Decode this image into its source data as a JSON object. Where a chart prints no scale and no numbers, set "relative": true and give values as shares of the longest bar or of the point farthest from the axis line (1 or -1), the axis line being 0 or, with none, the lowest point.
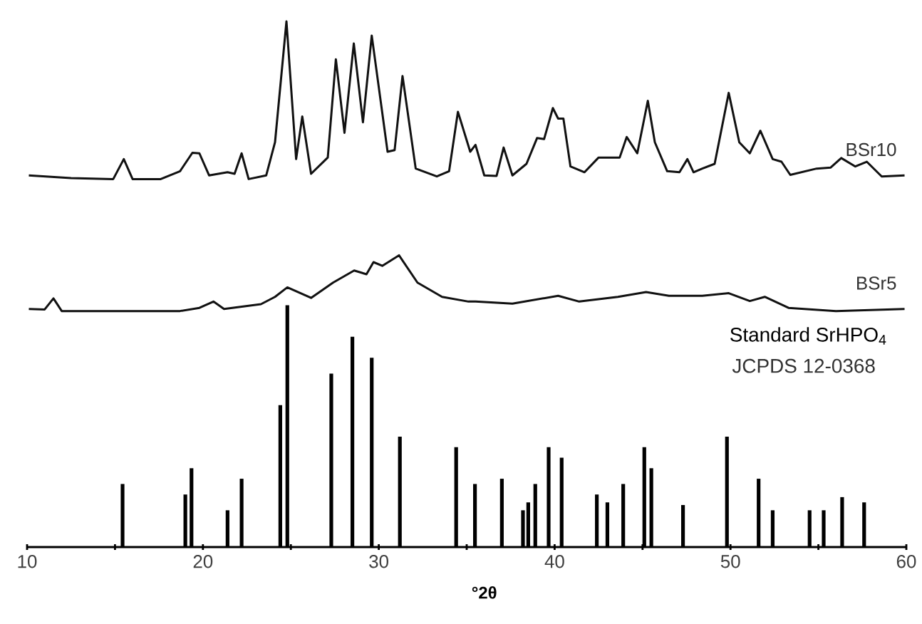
{
  "chart_data": {
    "type": "line",
    "relative": true,
    "xlabel": "°2θ",
    "xlim": [
      10,
      60
    ],
    "xticks": [
      10,
      {
        "value": 15,
        "label": null
      },
      20,
      {
        "value": 25,
        "label": null
      },
      30,
      {
        "value": 35,
        "label": null
      },
      40,
      {
        "value": 45,
        "label": null
      },
      50,
      {
        "value": 55,
        "label": null
      },
      60
    ],
    "annotations": [
      "JCPDS 12-0368"
    ],
    "series": [
      {
        "name": "BSr10",
        "color": "#111111",
        "x": [
          10.1,
          12.5,
          14.9,
          15.5,
          16.0,
          17.6,
          18.7,
          19.4,
          19.8,
          20.35,
          21.4,
          21.8,
          22.2,
          22.6,
          23.6,
          24.1,
          24.75,
          25.3,
          25.65,
          26.15,
          27.1,
          27.56,
          28.05,
          28.58,
          29.1,
          29.6,
          30.5,
          30.9,
          31.35,
          32.1,
          33.3,
          34.0,
          34.5,
          35.2,
          35.5,
          36.0,
          36.7,
          37.1,
          37.6,
          38.4,
          39.0,
          39.4,
          39.9,
          40.2,
          40.5,
          40.9,
          41.7,
          42.5,
          43.3,
          43.7,
          44.1,
          44.7,
          45.3,
          45.7,
          46.4,
          47.1,
          47.55,
          47.9,
          48.4,
          49.1,
          49.9,
          50.5,
          51.1,
          51.7,
          52.4,
          52.9,
          53.4,
          54.9,
          55.7,
          56.3,
          57.1,
          57.75,
          58.6,
          59.9
        ],
        "values": [
          0.707,
          0.702,
          0.7,
          0.738,
          0.7,
          0.7,
          0.715,
          0.75,
          0.749,
          0.707,
          0.713,
          0.71,
          0.749,
          0.7,
          0.707,
          0.77,
          1.0,
          0.738,
          0.819,
          0.71,
          0.741,
          0.928,
          0.788,
          0.958,
          0.808,
          0.973,
          0.752,
          0.755,
          0.896,
          0.72,
          0.705,
          0.715,
          0.828,
          0.752,
          0.765,
          0.707,
          0.706,
          0.76,
          0.707,
          0.729,
          0.778,
          0.776,
          0.835,
          0.815,
          0.815,
          0.724,
          0.713,
          0.741,
          0.741,
          0.741,
          0.78,
          0.749,
          0.849,
          0.77,
          0.715,
          0.713,
          0.738,
          0.713,
          0.72,
          0.729,
          0.864,
          0.77,
          0.749,
          0.792,
          0.738,
          0.733,
          0.708,
          0.72,
          0.722,
          0.74,
          0.724,
          0.733,
          0.705,
          0.707
        ]
      },
      {
        "name": "BSr5",
        "color": "#111111",
        "x": [
          10.1,
          11.0,
          11.5,
          11.97,
          15.2,
          18.7,
          19.8,
          20.6,
          21.2,
          23.3,
          24.1,
          24.8,
          26.15,
          27.4,
          28.6,
          29.3,
          29.7,
          30.2,
          31.15,
          32.2,
          33.6,
          35.1,
          35.5,
          37.6,
          40.2,
          41.4,
          43.6,
          45.2,
          46.5,
          48.4,
          49.9,
          51.1,
          51.95,
          53.3,
          56.0,
          59.9
        ],
        "values": [
          0.453,
          0.452,
          0.473,
          0.449,
          0.449,
          0.449,
          0.455,
          0.467,
          0.453,
          0.462,
          0.476,
          0.494,
          0.474,
          0.503,
          0.526,
          0.519,
          0.542,
          0.535,
          0.555,
          0.503,
          0.476,
          0.467,
          0.467,
          0.463,
          0.478,
          0.467,
          0.476,
          0.485,
          0.478,
          0.478,
          0.483,
          0.468,
          0.476,
          0.455,
          0.449,
          0.453
        ]
      },
      {
        "name": "Standard SrHPO$_{4}$",
        "type": "bar",
        "color": "#000000",
        "x": [
          15.43,
          19.0,
          19.35,
          21.4,
          22.2,
          24.4,
          24.8,
          27.3,
          28.5,
          29.6,
          31.2,
          34.4,
          35.47,
          37.0,
          38.2,
          38.5,
          38.9,
          39.66,
          40.4,
          42.4,
          43.0,
          43.9,
          45.1,
          45.5,
          47.3,
          49.8,
          51.6,
          52.4,
          54.5,
          55.3,
          56.35,
          57.6
        ],
        "values": [
          0.12,
          0.1,
          0.15,
          0.07,
          0.13,
          0.27,
          0.46,
          0.33,
          0.4,
          0.36,
          0.21,
          0.19,
          0.12,
          0.13,
          0.07,
          0.085,
          0.12,
          0.19,
          0.17,
          0.1,
          0.085,
          0.12,
          0.19,
          0.15,
          0.08,
          0.21,
          0.13,
          0.07,
          0.07,
          0.07,
          0.095,
          0.085
        ]
      }
    ]
  }
}
